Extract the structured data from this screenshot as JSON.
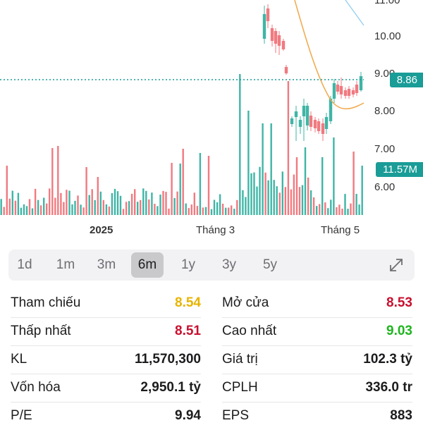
{
  "chart": {
    "y_ticks": [
      "11.00",
      "10.00",
      "9.00",
      "8.00",
      "7.00",
      "6.00"
    ],
    "x_labels": [
      "2025",
      "Tháng 3",
      "Tháng 5"
    ],
    "price_tag": "8.86",
    "volume_tag": "11.57M",
    "colors": {
      "up": "#3fb5a6",
      "down": "#f07a80",
      "ma": "#f0a84a",
      "ma2": "#8ccbf0",
      "tag": "#1a9c97"
    }
  },
  "range_tabs": {
    "items": [
      "1d",
      "1m",
      "3m",
      "6m",
      "1y",
      "3y",
      "5y"
    ],
    "selected": "6m",
    "expand_icon": "expand-arrows-icon"
  },
  "stats": {
    "left": [
      {
        "label": "Tham chiếu",
        "value": "8.54",
        "color": "#e8b400"
      },
      {
        "label": "Thấp nhất",
        "value": "8.51",
        "color": "#c8102e"
      },
      {
        "label": "KL",
        "value": "11,570,300",
        "color": "#1c1c1e"
      },
      {
        "label": "Vốn hóa",
        "value": "2,950.1 tỷ",
        "color": "#1c1c1e"
      },
      {
        "label": "P/E",
        "value": "9.94",
        "color": "#1c1c1e"
      }
    ],
    "right": [
      {
        "label": "Mở cửa",
        "value": "8.53",
        "color": "#c8102e"
      },
      {
        "label": "Cao nhất",
        "value": "9.03",
        "color": "#1fb51f"
      },
      {
        "label": "Giá trị",
        "value": "102.3 tỷ",
        "color": "#1c1c1e"
      },
      {
        "label": "CPLH",
        "value": "336.0 tr",
        "color": "#1c1c1e"
      },
      {
        "label": "EPS",
        "value": "883",
        "color": "#1c1c1e"
      }
    ]
  }
}
